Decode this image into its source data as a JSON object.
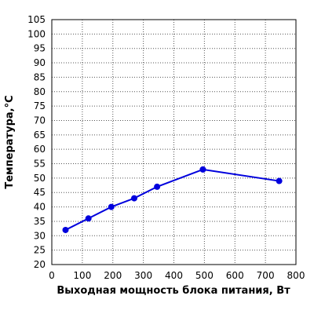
{
  "chart_data": {
    "type": "line",
    "title": "",
    "xlabel": "Выходная мощность блока питания, Вт",
    "ylabel": "Температура,°С",
    "xlim": [
      0,
      800
    ],
    "ylim": [
      20,
      105
    ],
    "x_ticks": [
      0,
      100,
      200,
      300,
      400,
      500,
      600,
      700,
      800
    ],
    "y_ticks": [
      20,
      25,
      30,
      35,
      40,
      45,
      50,
      55,
      60,
      65,
      70,
      75,
      80,
      85,
      90,
      95,
      100,
      105
    ],
    "grid": true,
    "grid_style": "dotted",
    "legend": "none",
    "series": [
      {
        "color": "#0000dd",
        "points": [
          {
            "x": 45,
            "y": 32
          },
          {
            "x": 120,
            "y": 36
          },
          {
            "x": 195,
            "y": 40
          },
          {
            "x": 270,
            "y": 43
          },
          {
            "x": 345,
            "y": 47
          },
          {
            "x": 495,
            "y": 53
          },
          {
            "x": 745,
            "y": 49
          }
        ]
      }
    ]
  }
}
